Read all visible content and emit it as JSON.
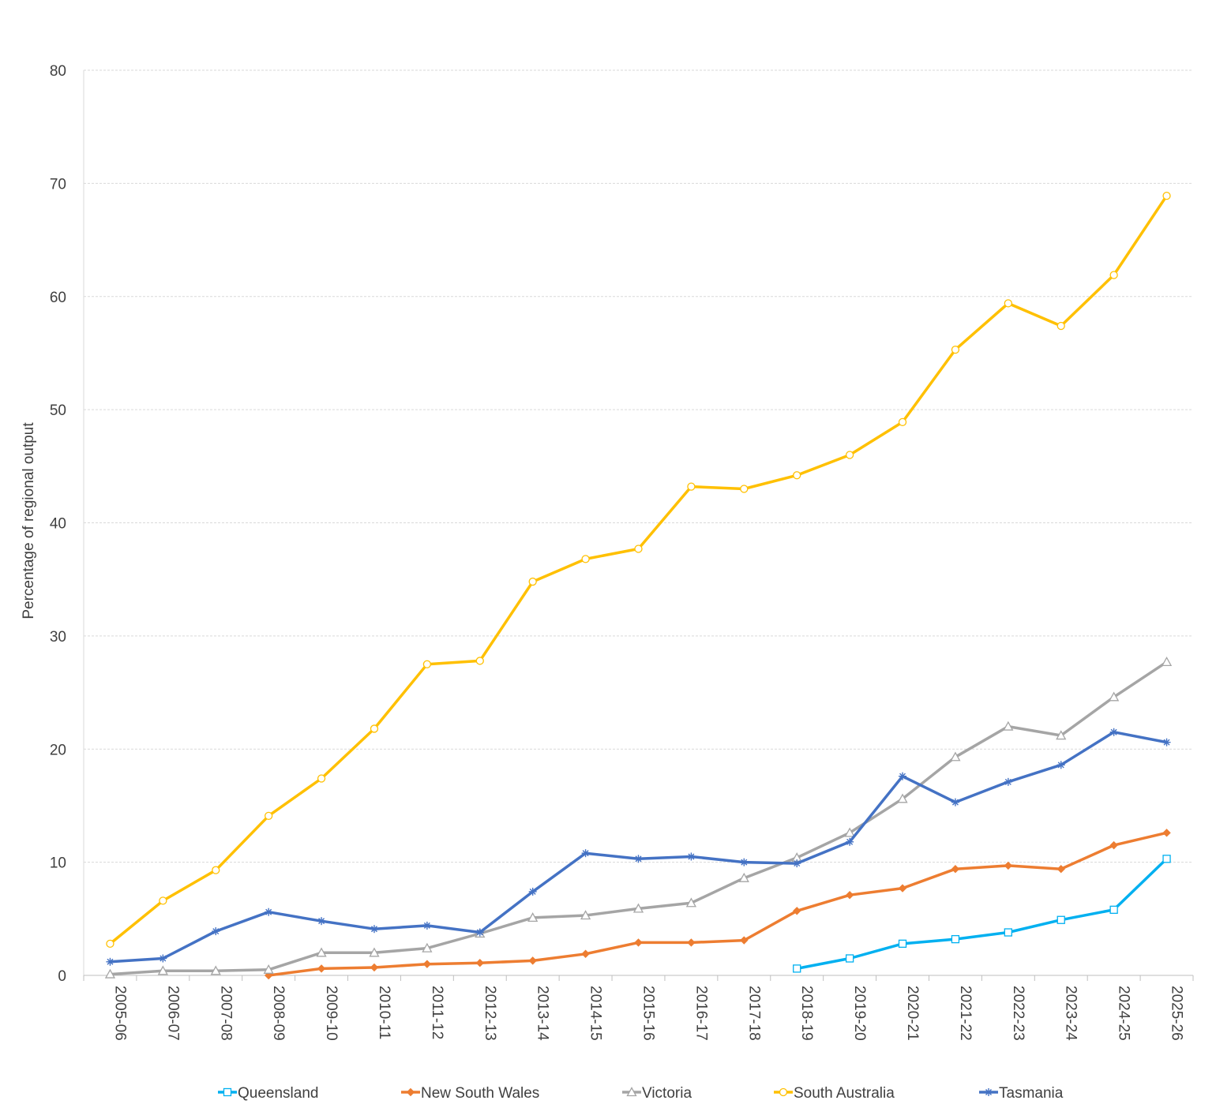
{
  "chart_data": {
    "type": "line",
    "title": "",
    "xlabel": "",
    "ylabel": "Percentage of regional output",
    "ylim": [
      0,
      80
    ],
    "yticks": [
      "0",
      "10",
      "20",
      "30",
      "40",
      "50",
      "60",
      "70",
      "80"
    ],
    "grid": "horizontal",
    "legend_position": "bottom",
    "categories": [
      "2005-06",
      "2006-07",
      "2007-08",
      "2008-09",
      "2009-10",
      "2010-11",
      "2011-12",
      "2012-13",
      "2013-14",
      "2014-15",
      "2015-16",
      "2016-17",
      "2017-18",
      "2018-19",
      "2019-20",
      "2020-21",
      "2021-22",
      "2022-23",
      "2023-24",
      "2024-25",
      "2025-26"
    ],
    "series": [
      {
        "name": "Queensland",
        "color": "#00B0F0",
        "marker": "square",
        "values": [
          null,
          null,
          null,
          null,
          null,
          null,
          null,
          null,
          null,
          null,
          null,
          null,
          null,
          0.6,
          1.5,
          2.8,
          3.2,
          3.8,
          4.9,
          5.8,
          10.3
        ]
      },
      {
        "name": "New South Wales",
        "color": "#ED7D31",
        "marker": "diamond",
        "values": [
          null,
          null,
          null,
          0.0,
          0.6,
          0.7,
          1.0,
          1.1,
          1.3,
          1.9,
          2.9,
          2.9,
          3.1,
          5.7,
          7.1,
          7.7,
          9.4,
          9.7,
          9.4,
          11.5,
          12.6
        ]
      },
      {
        "name": "Victoria",
        "color": "#A5A5A5",
        "marker": "triangle",
        "values": [
          0.1,
          0.4,
          0.4,
          0.5,
          2.0,
          2.0,
          2.4,
          3.7,
          5.1,
          5.3,
          5.9,
          6.4,
          8.6,
          10.4,
          12.6,
          15.6,
          19.3,
          22.0,
          21.2,
          24.6,
          27.7
        ]
      },
      {
        "name": "South Australia",
        "color": "#FFC000",
        "marker": "circle",
        "values": [
          2.8,
          6.6,
          9.3,
          14.1,
          17.4,
          21.8,
          27.5,
          27.8,
          34.8,
          36.8,
          37.7,
          43.2,
          43.0,
          44.2,
          46.0,
          48.9,
          55.3,
          59.4,
          57.4,
          61.9,
          68.9
        ]
      },
      {
        "name": "Tasmania",
        "color": "#4472C4",
        "marker": "star",
        "values": [
          1.2,
          1.5,
          3.9,
          5.6,
          4.8,
          4.1,
          4.4,
          3.8,
          7.4,
          10.8,
          10.3,
          10.5,
          10.0,
          9.9,
          11.8,
          17.6,
          15.3,
          17.1,
          18.6,
          21.5,
          20.6
        ]
      }
    ]
  }
}
